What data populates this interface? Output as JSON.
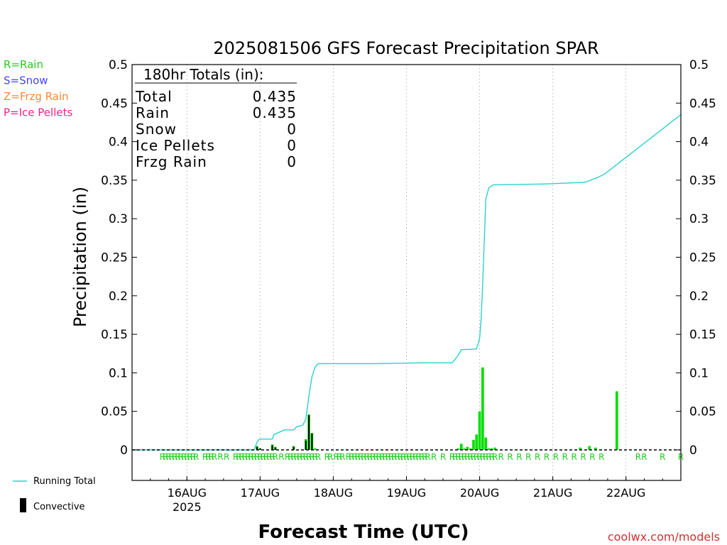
{
  "chart_data": {
    "type": "bar",
    "title": "2025081506 GFS Forecast Precipitation SPAR",
    "xlabel": "Forecast Time (UTC)",
    "ylabel": "Precipitation (in)",
    "ylim": [
      0,
      0.5
    ],
    "yticks": [
      "0",
      "0.05",
      "0.1",
      "0.15",
      "0.2",
      "0.25",
      "0.3",
      "0.35",
      "0.4",
      "0.45",
      "0.5"
    ],
    "x_range_hours": [
      0,
      180
    ],
    "x_ticks": [
      {
        "hour": 18,
        "label": "16AUG",
        "sublabel": "2025"
      },
      {
        "hour": 42,
        "label": "17AUG",
        "sublabel": ""
      },
      {
        "hour": 66,
        "label": "18AUG",
        "sublabel": ""
      },
      {
        "hour": 90,
        "label": "19AUG",
        "sublabel": ""
      },
      {
        "hour": 114,
        "label": "20AUG",
        "sublabel": ""
      },
      {
        "hour": 138,
        "label": "21AUG",
        "sublabel": ""
      },
      {
        "hour": 162,
        "label": "22AUG",
        "sublabel": ""
      }
    ],
    "grid": "vertical-dotted",
    "legend_left": [
      {
        "text": "R=Rain",
        "color": "#22cc22"
      },
      {
        "text": "S=Snow",
        "color": "#4444ff"
      },
      {
        "text": "Z=Frzg Rain",
        "color": "#ff8833"
      },
      {
        "text": "P=Ice Pellets",
        "color": "#ee2288"
      }
    ],
    "legend_bottom": [
      {
        "text": "Running Total",
        "kind": "line",
        "color": "#2ad1cf"
      },
      {
        "text": "Convective",
        "kind": "bar",
        "color": "#000000"
      }
    ],
    "totals_box": {
      "header": "180hr Totals (in):",
      "rows": [
        {
          "label": "Total",
          "value": "0.435"
        },
        {
          "label": "Rain",
          "value": "0.435"
        },
        {
          "label": "Snow",
          "value": "0"
        },
        {
          "label": "Ice Pellets",
          "value": "0"
        },
        {
          "label": "Frzg Rain",
          "value": "0"
        }
      ]
    },
    "credit": "coolwx.com/models",
    "colors": {
      "rain": "#00dd00",
      "convective": "#000000",
      "running_total": "#2ad1cf",
      "ptype_label": "#22cc22"
    },
    "series": [
      {
        "name": "Rain",
        "hours": [
          41,
          42,
          46,
          47,
          53,
          57,
          58,
          59,
          60,
          107,
          108,
          109,
          110,
          111,
          112,
          113,
          114,
          115,
          116,
          117,
          118,
          119,
          147,
          150,
          152,
          159
        ],
        "values": [
          0.005,
          0.002,
          0.007,
          0.004,
          0.005,
          0.014,
          0.046,
          0.022,
          0.002,
          0.002,
          0.008,
          0.002,
          0.004,
          0.002,
          0.013,
          0.02,
          0.05,
          0.107,
          0.016,
          0.002,
          0.002,
          0.003,
          0.003,
          0.005,
          0.003,
          0.076
        ]
      },
      {
        "name": "Convective",
        "hours": [
          41,
          42,
          46,
          47,
          53,
          57,
          58,
          59
        ],
        "values": [
          0.004,
          0.002,
          0.006,
          0.003,
          0.004,
          0.012,
          0.045,
          0.021
        ]
      },
      {
        "name": "Running Total",
        "hours": [
          0,
          40,
          40.5,
          41,
          41.5,
          42,
          46,
          46.5,
          50,
          53,
          54,
          56,
          57,
          58,
          59,
          60,
          61,
          64,
          80,
          95,
          104,
          105,
          106,
          107,
          108,
          113,
          114,
          114.5,
          115,
          116,
          117,
          118,
          118.5,
          119,
          120,
          135,
          147,
          148,
          150,
          151,
          153,
          154,
          155,
          180
        ],
        "values": [
          0,
          0,
          0.005,
          0.01,
          0.013,
          0.014,
          0.014,
          0.02,
          0.026,
          0.026,
          0.03,
          0.032,
          0.04,
          0.07,
          0.095,
          0.107,
          0.112,
          0.112,
          0.112,
          0.113,
          0.113,
          0.113,
          0.118,
          0.123,
          0.13,
          0.131,
          0.145,
          0.17,
          0.215,
          0.325,
          0.34,
          0.343,
          0.344,
          0.344,
          0.344,
          0.345,
          0.347,
          0.347,
          0.349,
          0.351,
          0.354,
          0.356,
          0.358,
          0.435
        ]
      }
    ],
    "ptype_marks": {
      "letter": "R",
      "hours": [
        10,
        11,
        12,
        13,
        14,
        15,
        16,
        17,
        18,
        19,
        20,
        21,
        24,
        25,
        26,
        27,
        29,
        31,
        34,
        35,
        36,
        37,
        38,
        39,
        40,
        41,
        42,
        43,
        44,
        45,
        46,
        47,
        49,
        51,
        52,
        53,
        54,
        55,
        56,
        57,
        58,
        59,
        60,
        61,
        64,
        65,
        67,
        68,
        69,
        71,
        72,
        73,
        74,
        75,
        76,
        77,
        78,
        79,
        80,
        81,
        82,
        83,
        84,
        85,
        86,
        87,
        88,
        89,
        90,
        91,
        92,
        93,
        94,
        95,
        96,
        97,
        99,
        102,
        105,
        106,
        107,
        108,
        109,
        110,
        111,
        112,
        113,
        114,
        115,
        116,
        117,
        118,
        119,
        121,
        124,
        127,
        130,
        133,
        136,
        139,
        142,
        145,
        148,
        151,
        154,
        166,
        168,
        174,
        180
      ]
    }
  }
}
